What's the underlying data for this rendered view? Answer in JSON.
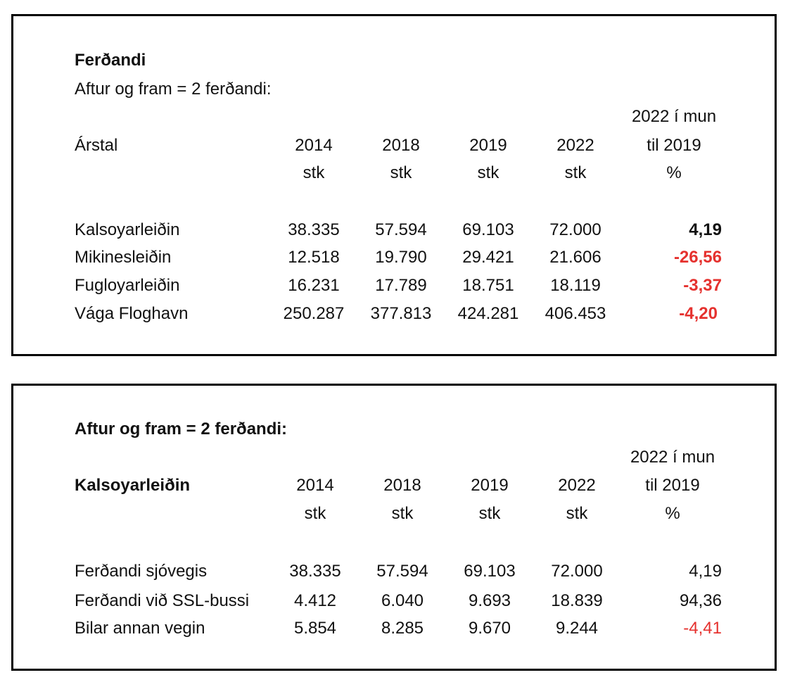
{
  "colors": {
    "negative": "#e5312e",
    "text": "#111111",
    "border": "#000000"
  },
  "table1": {
    "title": "Ferðandi",
    "subtitle": "Aftur og fram = 2 ferðandi:",
    "label_header": "Árstal",
    "years": [
      "2014",
      "2018",
      "2019",
      "2022"
    ],
    "unit": "stk",
    "change_header": [
      "2022 í mun",
      "til 2019",
      "%"
    ],
    "rows": [
      {
        "label": "Kalsoyarleiðin",
        "values": [
          "38.335",
          "57.594",
          "69.103",
          "72.000"
        ],
        "change": "4,19"
      },
      {
        "label": "Mikinesleiðin",
        "values": [
          "12.518",
          "19.790",
          "29.421",
          "21.606"
        ],
        "change": "-26,56"
      },
      {
        "label": "Fugloyarleiðin",
        "values": [
          "16.231",
          "17.789",
          "18.751",
          "18.119"
        ],
        "change": "-3,37"
      },
      {
        "label": "Vága Floghavn",
        "values": [
          "250.287",
          "377.813",
          "424.281",
          "406.453"
        ],
        "change": "-4,20"
      }
    ]
  },
  "table2": {
    "subtitle": "Aftur og fram = 2 ferðandi:",
    "label_header": "Kalsoyarleiðin",
    "years": [
      "2014",
      "2018",
      "2019",
      "2022"
    ],
    "unit": "stk",
    "change_header": [
      "2022 í mun",
      "til 2019",
      "%"
    ],
    "rows": [
      {
        "label": "Ferðandi sjóvegis",
        "values": [
          "38.335",
          "57.594",
          "69.103",
          "72.000"
        ],
        "change": "4,19"
      },
      {
        "label": "Ferðandi við SSL-bussi",
        "values": [
          "4.412",
          "6.040",
          "9.693",
          "18.839"
        ],
        "change": "94,36"
      },
      {
        "label": "Bilar annan vegin",
        "values": [
          "5.854",
          "8.285",
          "9.670",
          "9.244"
        ],
        "change": "-4,41"
      }
    ]
  }
}
